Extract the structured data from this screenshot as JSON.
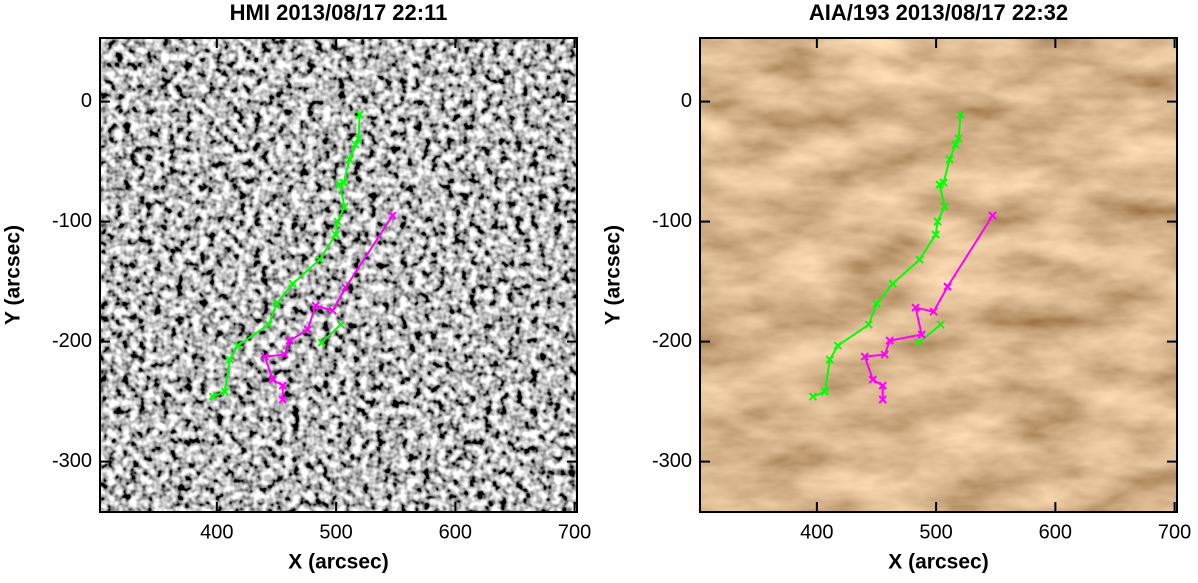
{
  "chart_data": [
    {
      "type": "line",
      "title": "HMI 2013/08/17 22:11",
      "x_label": "X (arcsec)",
      "y_label": "Y (arcsec)",
      "background": "magnetogram",
      "xlim": [
        302,
        702
      ],
      "ylim": [
        -342,
        53
      ],
      "xticks": [
        400,
        500,
        600,
        700
      ],
      "yticks": [
        0,
        -100,
        -200,
        -300
      ],
      "series": [
        {
          "color": "#00ff00",
          "x": [
            519.7,
            518.8,
            516.3,
            511.3,
            506.3,
            502.9,
            507.1,
            501.3,
            499.6,
            486.2,
            463.6,
            450.2,
            443.5,
            417.6,
            410.9,
            406.7,
            396.7
          ],
          "values": [
            -10.8,
            -30.8,
            -35.8,
            -48.3,
            -67.5,
            -69.2,
            -87.5,
            -100,
            -110.8,
            -131.7,
            -151.7,
            -168.3,
            -185.8,
            -203.3,
            -215,
            -241.7,
            -245.8
          ]
        },
        {
          "color": "#00ff00",
          "x": [
            487.9,
            503.8
          ],
          "values": [
            -200.8,
            -185.8
          ]
        },
        {
          "color": "#ff00ff",
          "x": [
            547.3,
            507.9,
            497.1,
            482.8,
            476.2,
            461.1,
            456.9,
            440.2,
            446.9,
            455.2,
            455.2
          ],
          "values": [
            -95,
            -155,
            -174.2,
            -170,
            -190,
            -199.2,
            -210.8,
            -212.5,
            -231.7,
            -236.7,
            -248.3
          ]
        }
      ]
    },
    {
      "type": "line",
      "title": "AIA/193 2013/08/17 22:32",
      "x_label": "X (arcsec)",
      "y_label": "Y (arcsec)",
      "background": "euv",
      "xlim": [
        302,
        702
      ],
      "ylim": [
        -342,
        53
      ],
      "xticks": [
        400,
        500,
        600,
        700
      ],
      "yticks": [
        0,
        -100,
        -200,
        -300
      ],
      "series": [
        {
          "color": "#00ff00",
          "x": [
            520.5,
            518.8,
            516.3,
            511.3,
            506.3,
            502.9,
            507.1,
            501.3,
            499.6,
            486.2,
            463.6,
            450.2,
            443.5,
            417.6,
            410.9,
            406.7,
            396.7
          ],
          "values": [
            -10.8,
            -30.8,
            -35.8,
            -48.3,
            -67.5,
            -69.2,
            -87.5,
            -100,
            -110.8,
            -131.7,
            -151.7,
            -168.3,
            -185.8,
            -203.3,
            -215,
            -241.7,
            -245.8
          ]
        },
        {
          "color": "#00ff00",
          "x": [
            485.4,
            503.8
          ],
          "values": [
            -200.8,
            -185.8
          ]
        },
        {
          "color": "#ff00ff",
          "x": [
            547.3,
            509.6,
            497.9,
            482.8,
            487.9,
            461.1,
            456.9,
            440.2,
            446.9,
            455.2,
            455.2
          ],
          "values": [
            -95,
            -154.2,
            -175,
            -171.7,
            -194.2,
            -199.2,
            -210.8,
            -212.5,
            -231.7,
            -236.7,
            -248.3
          ]
        }
      ]
    }
  ]
}
